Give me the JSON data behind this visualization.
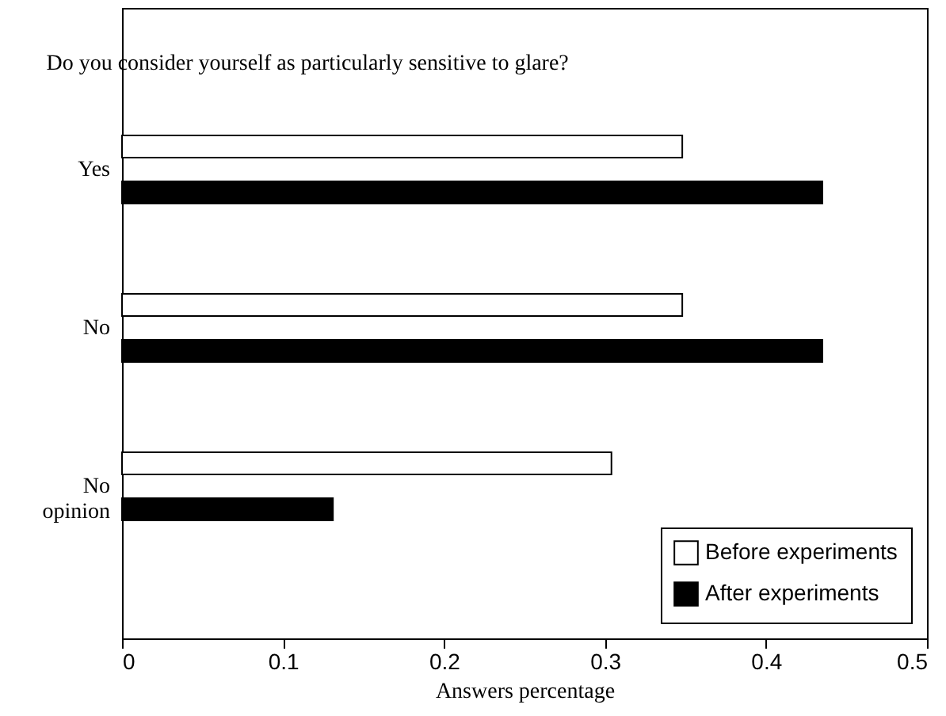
{
  "chart_data": {
    "type": "bar",
    "orientation": "horizontal",
    "title": "Do you consider yourself as particularly sensitive to glare?",
    "xlabel": "Answers percentage",
    "categories": [
      "Yes",
      "No",
      "No opinion"
    ],
    "series": [
      {
        "name": "Before experiments",
        "color": "#ffffff",
        "values": [
          0.348,
          0.348,
          0.304
        ]
      },
      {
        "name": "After experiments",
        "color": "#000000",
        "values": [
          0.435,
          0.435,
          0.131
        ]
      }
    ],
    "xlim": [
      0,
      0.5
    ],
    "xticks": [
      0,
      0.1,
      0.2,
      0.3,
      0.4,
      0.5
    ],
    "grid": false,
    "legend": "bottom right"
  }
}
